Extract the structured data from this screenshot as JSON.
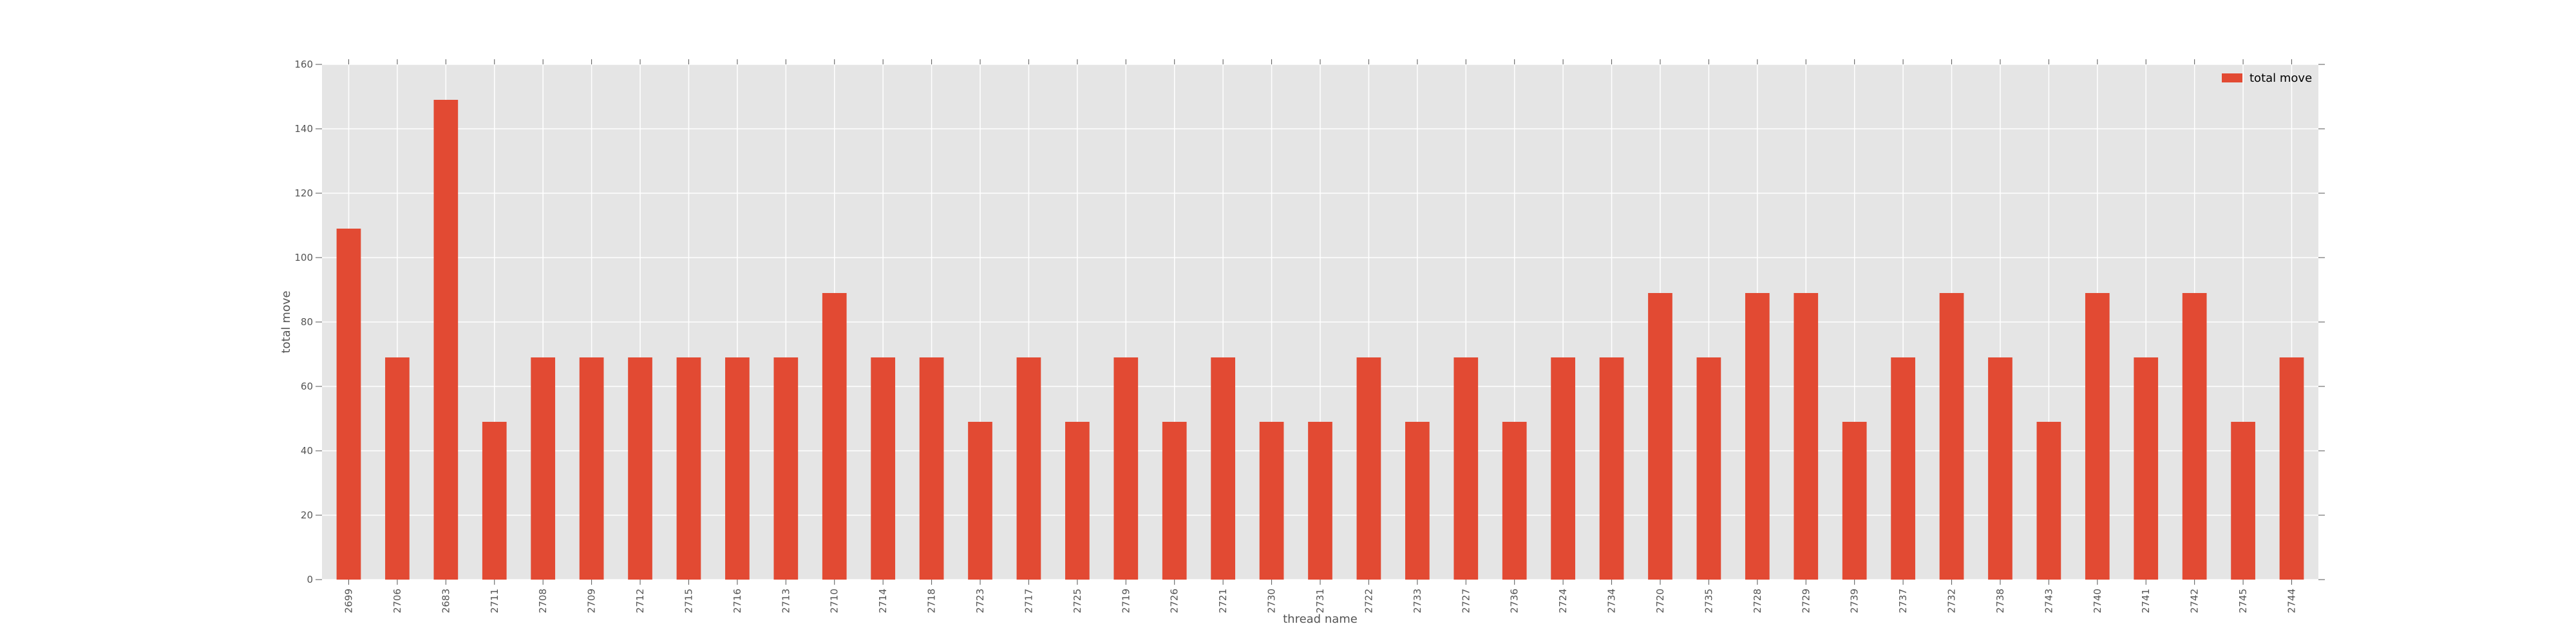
{
  "chart_data": {
    "type": "bar",
    "xlabel": "thread name",
    "ylabel": "total move",
    "ylim": [
      0,
      160
    ],
    "yticks": [
      0,
      20,
      40,
      60,
      80,
      100,
      120,
      140,
      160
    ],
    "grid": true,
    "legend": "top-right",
    "categories": [
      "2699",
      "2706",
      "2683",
      "2711",
      "2708",
      "2709",
      "2712",
      "2715",
      "2716",
      "2713",
      "2710",
      "2714",
      "2718",
      "2723",
      "2717",
      "2725",
      "2719",
      "2726",
      "2721",
      "2730",
      "2731",
      "2722",
      "2733",
      "2727",
      "2736",
      "2724",
      "2734",
      "2720",
      "2735",
      "2728",
      "2729",
      "2739",
      "2737",
      "2732",
      "2738",
      "2743",
      "2740",
      "2741",
      "2742",
      "2745",
      "2744"
    ],
    "series": [
      {
        "name": "total move",
        "color": "#e24a33",
        "values": [
          109,
          69,
          149,
          49,
          69,
          69,
          69,
          69,
          69,
          69,
          89,
          69,
          69,
          49,
          69,
          49,
          69,
          49,
          69,
          49,
          49,
          69,
          49,
          69,
          49,
          69,
          69,
          89,
          69,
          89,
          89,
          49,
          69,
          89,
          69,
          49,
          89,
          69,
          89,
          49,
          69
        ]
      }
    ]
  },
  "colors": {
    "plot_background": "#e5e5e5",
    "grid": "#ffffff",
    "text": "#555555"
  }
}
